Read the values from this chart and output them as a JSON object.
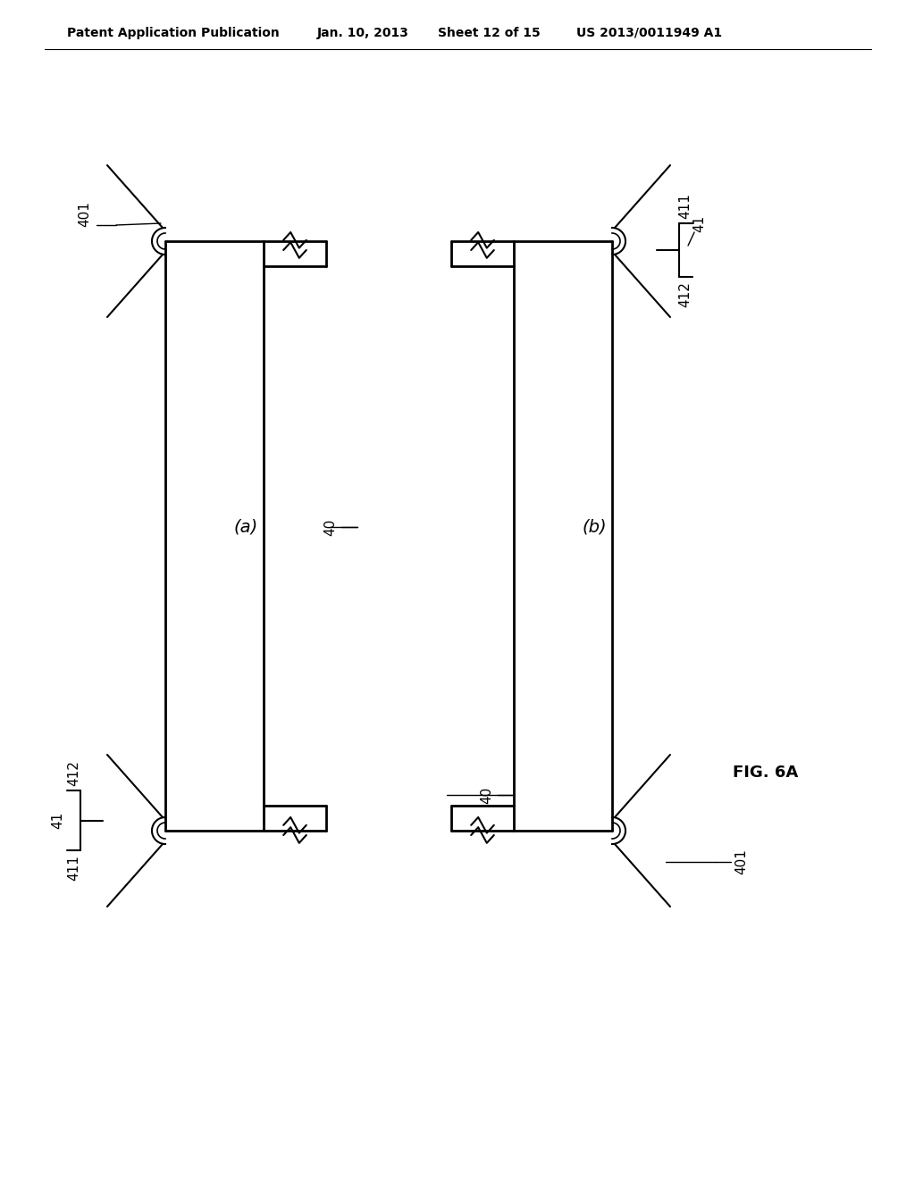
{
  "bg_color": "#ffffff",
  "header_text": "Patent Application Publication",
  "header_date": "Jan. 10, 2013",
  "header_sheet": "Sheet 12 of 15",
  "header_patent": "US 2013/0011949 A1",
  "fig_label": "FIG. 6A",
  "panel_a_label": "(a)",
  "panel_b_label": "(b)"
}
